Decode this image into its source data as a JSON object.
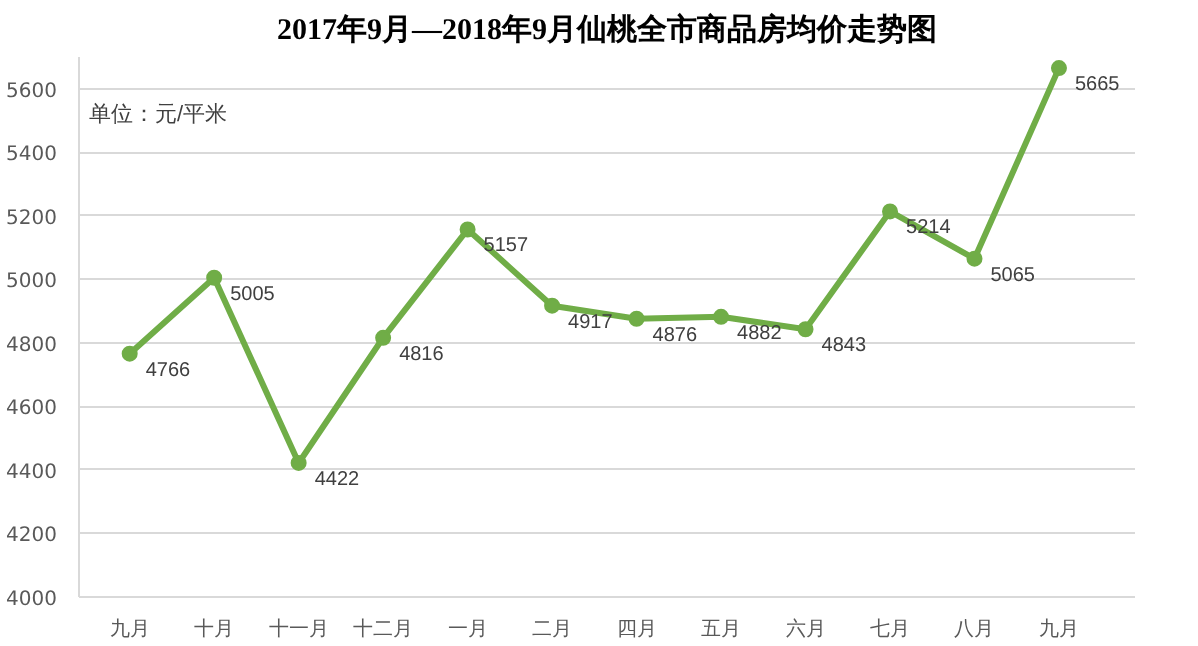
{
  "chart_data": {
    "type": "line",
    "title": "2017年9月—2018年9月仙桃全市商品房均价走势图",
    "categories": [
      "九月",
      "十月",
      "十一月",
      "十二月",
      "一月",
      "二月",
      "四月",
      "五月",
      "六月",
      "七月",
      "八月",
      "九月"
    ],
    "series": [
      {
        "color": "#70ad47",
        "values": [
          4766,
          5005,
          4422,
          4816,
          5157,
          4917,
          4876,
          4882,
          4843,
          5214,
          5065,
          5665
        ]
      }
    ],
    "ylim": [
      4000,
      5700
    ],
    "yticks": [
      4000,
      4200,
      4400,
      4600,
      4800,
      5000,
      5200,
      5400,
      5600
    ],
    "grid": "y",
    "marker": "circle",
    "line_style": "solid",
    "data_labels": true,
    "annotations": [
      "单位：元/平米"
    ]
  }
}
